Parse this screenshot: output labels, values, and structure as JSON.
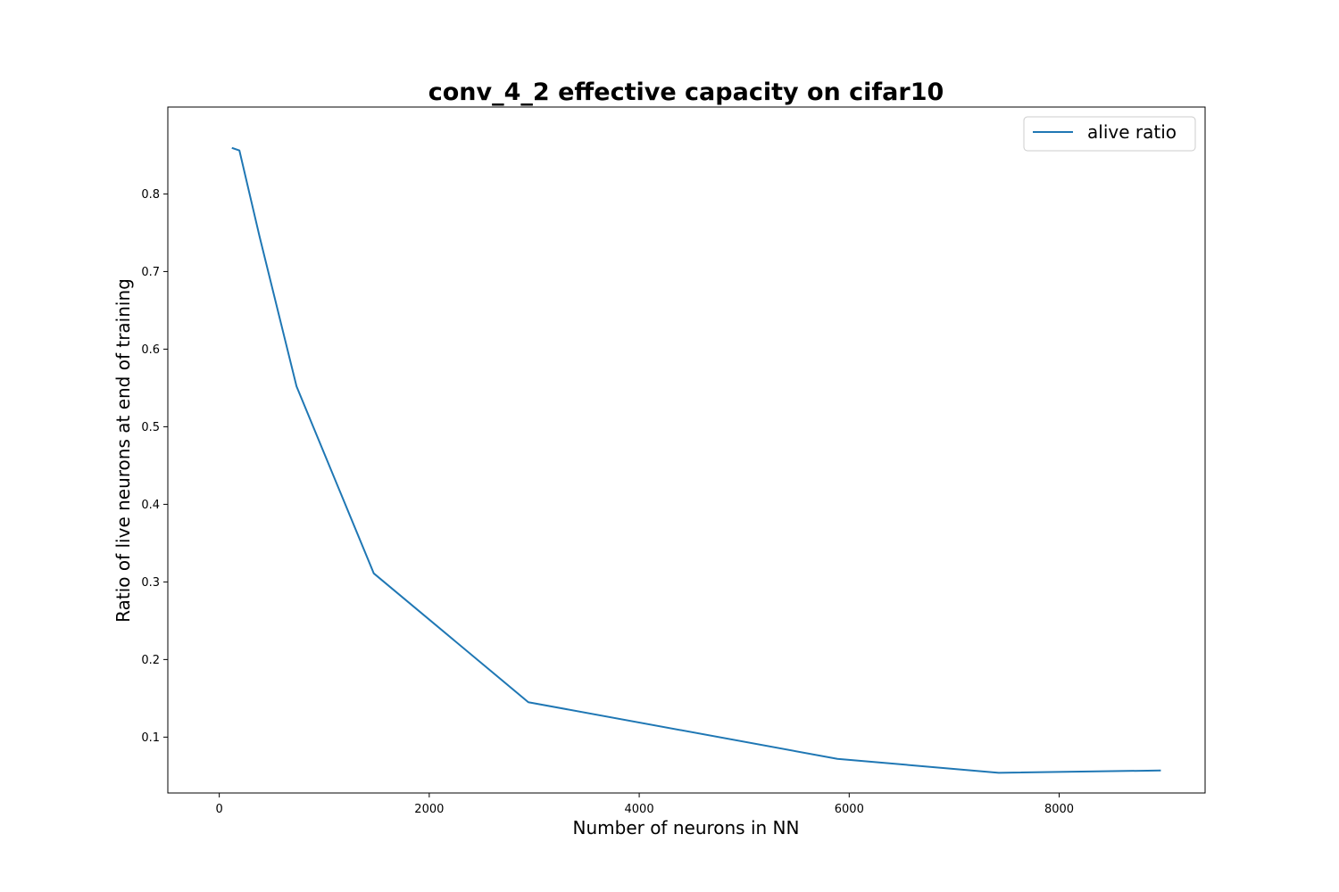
{
  "chart_data": {
    "type": "line",
    "title": "conv_4_2 effective capacity on cifar10",
    "xlabel": "Number of neurons in NN",
    "ylabel": "Ratio of live neurons at end of training",
    "xlim": [
      -490,
      9390
    ],
    "ylim": [
      0.028,
      0.912
    ],
    "xticks": [
      0,
      2000,
      4000,
      6000,
      8000
    ],
    "xtick_labels": [
      "0",
      "2000",
      "4000",
      "6000",
      "8000"
    ],
    "yticks": [
      0.1,
      0.2,
      0.3,
      0.4,
      0.5,
      0.6,
      0.7,
      0.8
    ],
    "ytick_labels": [
      "0.1",
      "0.2",
      "0.3",
      "0.4",
      "0.5",
      "0.6",
      "0.7",
      "0.8"
    ],
    "grid": false,
    "legend_position": "top-right",
    "series": [
      {
        "name": "alive ratio",
        "color": "#1f77b4",
        "x": [
          128,
          192,
          384,
          736,
          1472,
          2944,
          5888,
          7424,
          8960
        ],
        "y": [
          0.859,
          0.856,
          0.745,
          0.552,
          0.311,
          0.145,
          0.072,
          0.054,
          0.057
        ]
      }
    ]
  }
}
